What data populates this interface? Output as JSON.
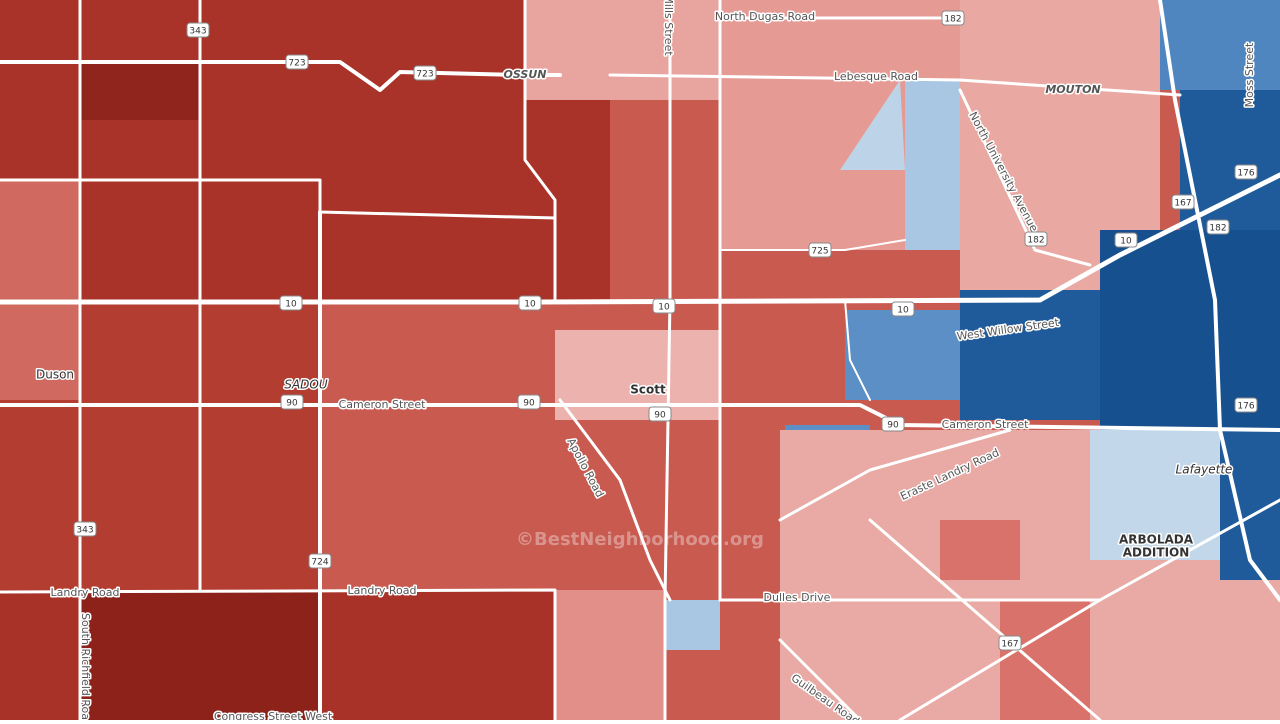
{
  "roads": [
    "North Dugas Road",
    "Lebesque Road",
    "OSSUN",
    "MOUTON",
    "North University Avenue",
    "Moss Street",
    "Mills Street",
    "West Willow Street",
    "Cameron Street",
    "Cameron Street",
    "Apollo Road",
    "Eraste Landry Road",
    "Landry Road",
    "Landry Road",
    "Dulles Drive",
    "Guilbeau Road",
    "South Richfield Road",
    "Congress Street West"
  ],
  "places": [
    "Duson",
    "Scott",
    "SADOU",
    "Lafayette",
    "ARBOLADA",
    "ADDITION"
  ],
  "shields": [
    "343",
    "723",
    "723",
    "182",
    "10",
    "10",
    "10",
    "10",
    "10",
    "725",
    "182",
    "182",
    "167",
    "176",
    "176",
    "90",
    "90",
    "90",
    "90",
    "343",
    "724",
    "167"
  ],
  "watermark": "©BestNeighborhood.org"
}
